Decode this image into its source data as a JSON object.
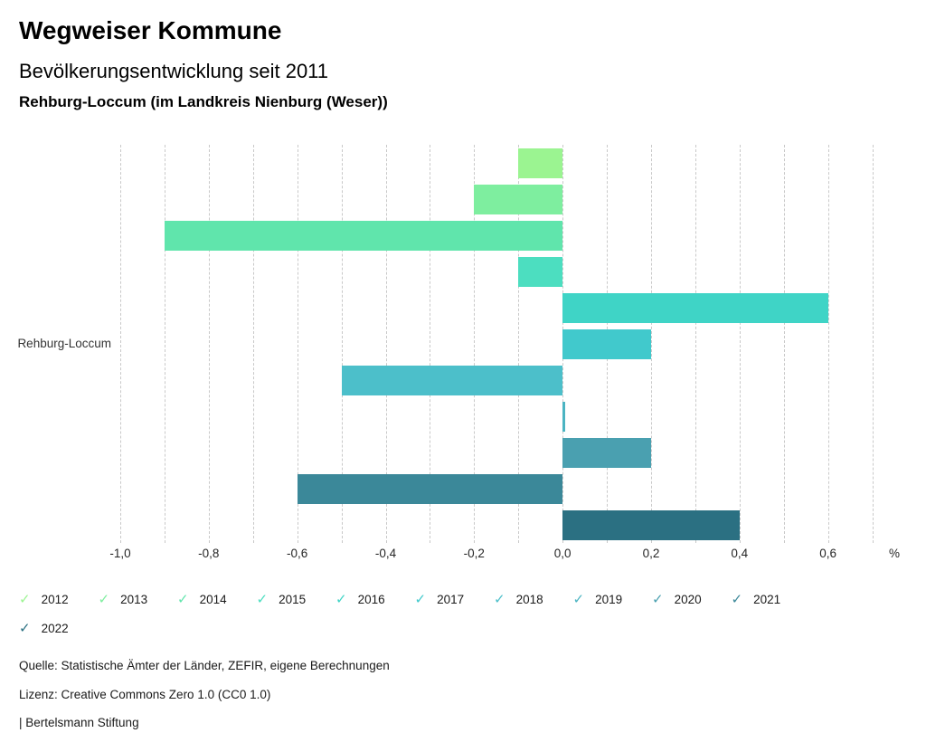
{
  "header": {
    "brand": "Wegweiser Kommune",
    "title": "Bevölkerungsentwicklung seit 2011",
    "subtitle": "Rehburg-Loccum (im Landkreis Nienburg (Weser))"
  },
  "chart_data": {
    "type": "bar",
    "orientation": "horizontal",
    "title": "Bevölkerungsentwicklung seit 2011",
    "category": "Rehburg-Loccum",
    "unit_label": "%",
    "xlabel": "%",
    "ylabel": "Rehburg-Loccum",
    "xlim": [
      -1.0,
      0.75
    ],
    "grid": "dashed-vertical",
    "grid_step": 0.1,
    "grid_range": [
      -1.0,
      0.7
    ],
    "gridline_color": "#c9c9c9",
    "xtick_labels": [
      {
        "value": -1.0,
        "label": "-1,0"
      },
      {
        "value": -0.8,
        "label": "-0,8"
      },
      {
        "value": -0.6,
        "label": "-0,6"
      },
      {
        "value": -0.4,
        "label": "-0,4"
      },
      {
        "value": -0.2,
        "label": "-0,2"
      },
      {
        "value": 0.0,
        "label": "0,0"
      },
      {
        "value": 0.2,
        "label": "0,2"
      },
      {
        "value": 0.4,
        "label": "0,4"
      },
      {
        "value": 0.6,
        "label": "0,6"
      }
    ],
    "series": [
      {
        "year": "2012",
        "value": -0.1,
        "color": "#9BF491"
      },
      {
        "year": "2013",
        "value": -0.2,
        "color": "#7EEE9F"
      },
      {
        "year": "2014",
        "value": -0.9,
        "color": "#60E5AC"
      },
      {
        "year": "2015",
        "value": -0.1,
        "color": "#4CDEC0"
      },
      {
        "year": "2016",
        "value": 0.6,
        "color": "#3FD4C6"
      },
      {
        "year": "2017",
        "value": 0.2,
        "color": "#41C9CC"
      },
      {
        "year": "2018",
        "value": -0.5,
        "color": "#4CBFCA"
      },
      {
        "year": "2019",
        "value": 0.0,
        "color": "#4BB4C2"
      },
      {
        "year": "2020",
        "value": 0.2,
        "color": "#4AA0B0"
      },
      {
        "year": "2021",
        "value": -0.6,
        "color": "#3B8899"
      },
      {
        "year": "2022",
        "value": 0.4,
        "color": "#2B7082"
      }
    ],
    "legend_position": "bottom",
    "legend_check_glyph": "✓",
    "legend_rows": [
      [
        "2012",
        "2013",
        "2014",
        "2015",
        "2016",
        "2017",
        "2018",
        "2019",
        "2020",
        "2021"
      ],
      [
        "2022"
      ]
    ]
  },
  "footer": {
    "source": "Quelle: Statistische Ämter der Länder, ZEFIR, eigene Berechnungen",
    "license": "Lizenz: Creative Commons Zero 1.0 (CC0 1.0)",
    "attribution": "| Bertelsmann Stiftung"
  }
}
